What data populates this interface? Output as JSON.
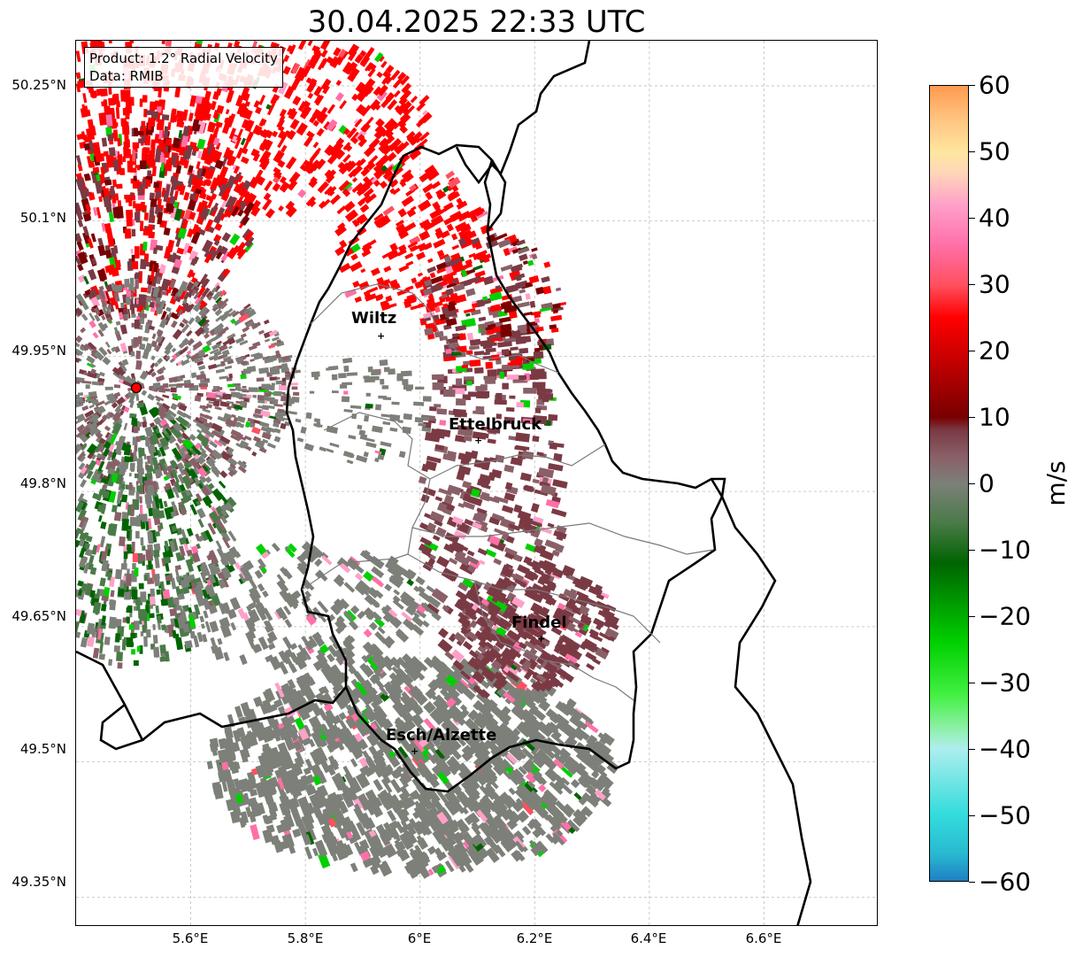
{
  "title": "30.04.2025 22:33 UTC",
  "info": {
    "product": "Product: 1.2° Radial Velocity",
    "source": "Data: RMIB"
  },
  "axes": {
    "lat_ticks": [
      "50.25°N",
      "50.1°N",
      "49.95°N",
      "49.8°N",
      "49.65°N",
      "49.5°N",
      "49.35°N"
    ],
    "lon_ticks": [
      "5.6°E",
      "5.8°E",
      "6°E",
      "6.2°E",
      "6.4°E",
      "6.6°E"
    ]
  },
  "cities": [
    {
      "name": "Wiltz",
      "lon": 5.93,
      "lat": 49.97
    },
    {
      "name": "Ettelbruck",
      "lon": 6.1,
      "lat": 49.85
    },
    {
      "name": "Findel",
      "lon": 6.21,
      "lat": 49.63
    },
    {
      "name": "Esch/Alzette",
      "lon": 5.99,
      "lat": 49.5
    }
  ],
  "radar_site": {
    "lon": 5.505,
    "lat": 49.915
  },
  "colorbar": {
    "label": "m/s",
    "min": -60,
    "max": 60,
    "tick_labels": [
      "60",
      "50",
      "40",
      "30",
      "20",
      "10",
      "0",
      "−10",
      "−20",
      "−30",
      "−40",
      "−50",
      "−60"
    ],
    "stops": [
      {
        "v": -60,
        "c": "#1f7fc4"
      },
      {
        "v": -56,
        "c": "#29b8d0"
      },
      {
        "v": -50,
        "c": "#33dcdc"
      },
      {
        "v": -40,
        "c": "#aeeeee"
      },
      {
        "v": -37,
        "c": "#8ef0a8"
      },
      {
        "v": -32,
        "c": "#44f044"
      },
      {
        "v": -24,
        "c": "#00d000"
      },
      {
        "v": -12,
        "c": "#006400"
      },
      {
        "v": -6,
        "c": "#4a7a48"
      },
      {
        "v": 0,
        "c": "#7c8078"
      },
      {
        "v": 4,
        "c": "#8a6068"
      },
      {
        "v": 8,
        "c": "#7a3a44"
      },
      {
        "v": 10,
        "c": "#780000"
      },
      {
        "v": 25,
        "c": "#ff0000"
      },
      {
        "v": 30,
        "c": "#ff5060"
      },
      {
        "v": 36,
        "c": "#ff70a8"
      },
      {
        "v": 42,
        "c": "#ffa0c8"
      },
      {
        "v": 47,
        "c": "#ffd8b8"
      },
      {
        "v": 50,
        "c": "#ffe6a0"
      },
      {
        "v": 55,
        "c": "#ffc480"
      },
      {
        "v": 60,
        "c": "#ff9a50"
      }
    ]
  },
  "extent": {
    "lon_min": 5.4,
    "lon_max": 6.8,
    "lat_min": 49.317,
    "lat_max": 50.3
  }
}
